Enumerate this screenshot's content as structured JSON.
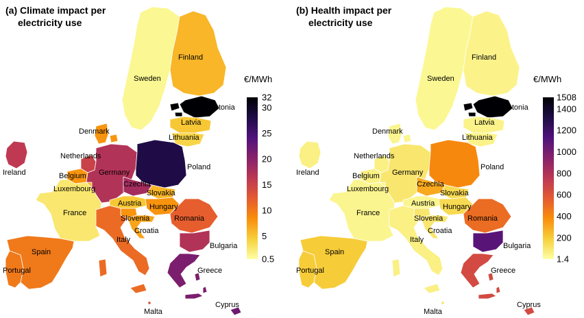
{
  "panels": [
    {
      "id": "climate",
      "title_line1": "(a) Climate impact per",
      "title_line2": "electricity use",
      "unit": "€/MWh",
      "scale": {
        "min": 0.5,
        "max": 32
      },
      "ticks": [
        "32",
        "30",
        "25",
        "20",
        "15",
        "10",
        "5",
        "0.5"
      ],
      "tick_values": [
        32,
        30,
        25,
        20,
        15,
        10,
        5,
        0.5
      ],
      "values": {
        "Ireland": 16,
        "Portugal": 10,
        "Spain": 10,
        "France": 2.5,
        "Belgium": 8,
        "Netherlands": 15,
        "Luxembourg": 6,
        "Germany": 17,
        "Denmark": 8,
        "Sweden": 1.2,
        "Finland": 6,
        "Estonia": 32,
        "Latvia": 5,
        "Lithuania": 4,
        "Poland": 28,
        "Czechia": 18,
        "Austria": 5,
        "Slovakia": 6,
        "Hungary": 8,
        "Slovenia": 8,
        "Croatia": 7,
        "Italy": 11,
        "Romania": 12,
        "Bulgaria": 17,
        "Greece": 21,
        "Cyprus": 22,
        "Malta": 14
      }
    },
    {
      "id": "health",
      "title_line1": "(b) Health impact per",
      "title_line2": "electricity use",
      "unit": "€/MWh",
      "scale": {
        "min": 1.4,
        "max": 1508
      },
      "ticks": [
        "1508",
        "1400",
        "1200",
        "1000",
        "800",
        "600",
        "400",
        "200",
        "1.4"
      ],
      "tick_values": [
        1508,
        1400,
        1200,
        1000,
        800,
        600,
        400,
        200,
        1.4
      ],
      "values": {
        "Ireland": 60,
        "Portugal": 200,
        "Spain": 200,
        "France": 40,
        "Belgium": 60,
        "Netherlands": 60,
        "Luxembourg": 40,
        "Germany": 100,
        "Denmark": 40,
        "Sweden": 30,
        "Finland": 50,
        "Estonia": 1508,
        "Latvia": 50,
        "Lithuania": 50,
        "Poland": 400,
        "Czechia": 300,
        "Austria": 40,
        "Slovakia": 150,
        "Hungary": 150,
        "Slovenia": 100,
        "Croatia": 100,
        "Italy": 60,
        "Romania": 500,
        "Bulgaria": 1100,
        "Greece": 650,
        "Cyprus": 650,
        "Malta": 120
      }
    }
  ],
  "colors": {
    "scale_stops": [
      "#fcffa4",
      "#f7d03c",
      "#f98e09",
      "#e45a31",
      "#bc3754",
      "#87216b",
      "#50127b",
      "#1e0c45",
      "#000004"
    ]
  }
}
